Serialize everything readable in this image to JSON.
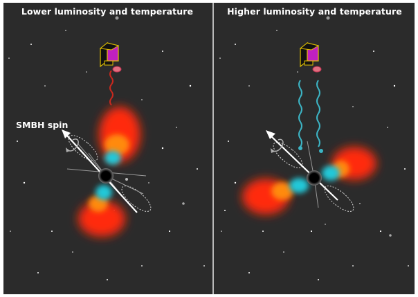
{
  "panels": [
    {
      "title": "Lower luminosity and temperature"
    },
    {
      "title": "Higher luminosity and temperature"
    }
  ],
  "labels": {
    "smbh_spin": "SMBH spin"
  },
  "colors": {
    "background": "#2b2b2b",
    "divider": "#b8b8b8",
    "hot_gas": "#ff2a10",
    "warm_gas": "#ff8a10",
    "cool_gas": "#22c8d8",
    "low_energy_wave": "#c8281e",
    "high_energy_wave": "#3cb4c4",
    "spin_arrow": "#ffffff",
    "satellite_body": "#111111",
    "satellite_panel": "#c020c0",
    "satellite_frame": "#e0c000"
  },
  "icons": [
    "satellite-icon",
    "black-hole-icon",
    "rotation-arrow-icon",
    "spin-arrow-icon",
    "precession-cone-icon",
    "wave-signal-icon"
  ]
}
